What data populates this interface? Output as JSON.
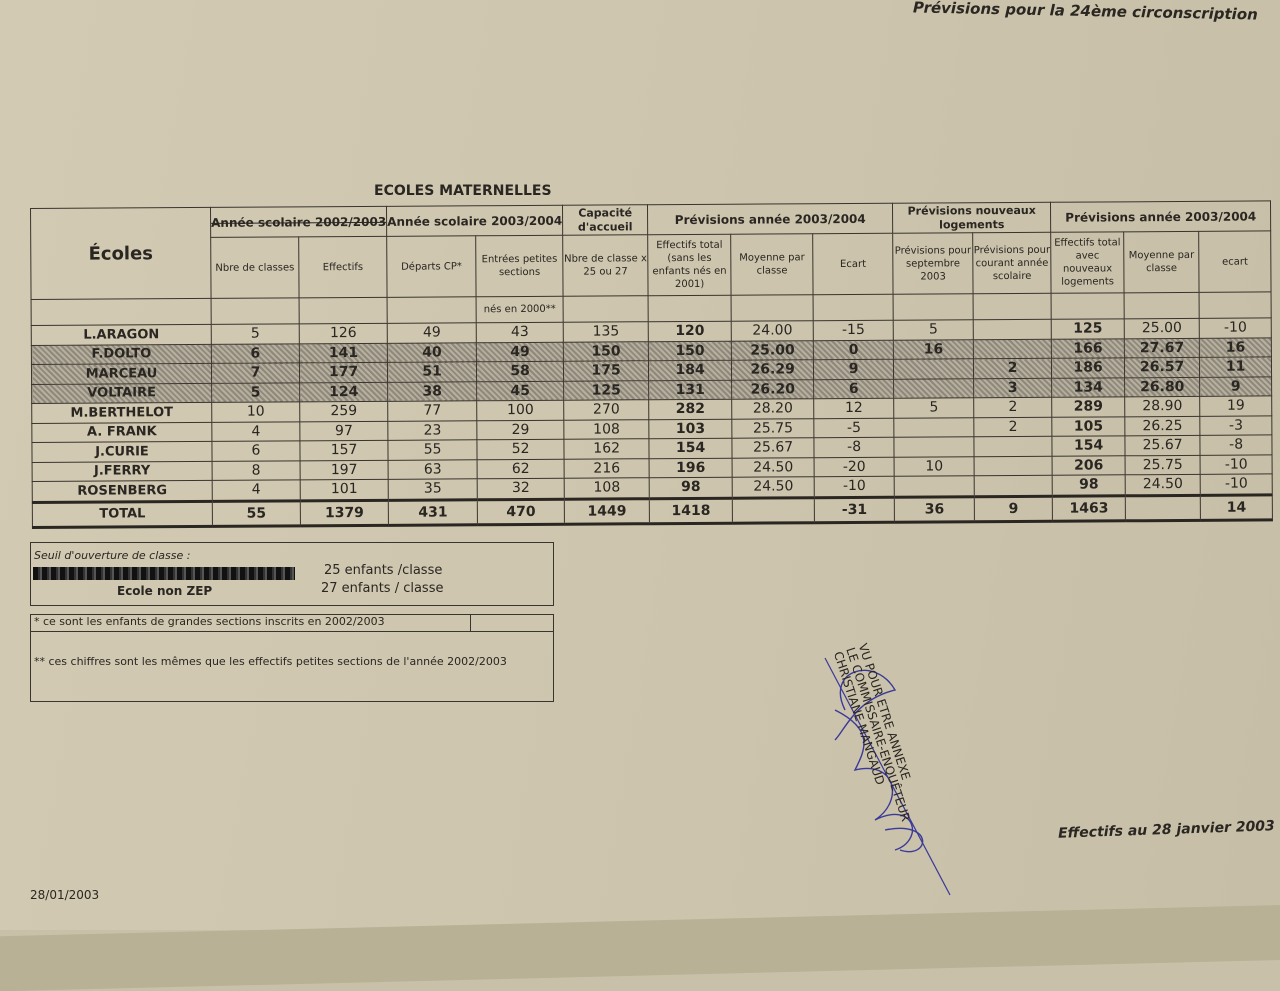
{
  "header_title": "Prévisions pour la 24ème circonscription",
  "section_title": "ECOLES MATERNELLES",
  "table": {
    "ecoles_label": "Écoles",
    "groups": {
      "y2002": "Année scolaire 2002/2003",
      "y2003": "Année scolaire 2003/2004",
      "capacite": "Capacité d'accueil",
      "prev": "Prévisions  année 2003/2004",
      "logements": "Prévisions nouveaux logements",
      "prev2": "Prévisions  année 2003/2004"
    },
    "subheaders": [
      "Nbre de classes",
      "Effectifs",
      "Départs CP*",
      "Entrées petites sections",
      "Nbre de classe x 25 ou 27",
      "Effectifs total (sans les enfants nés en 2001)",
      "Moyenne par classe",
      "Ecart",
      "Prévisions pour septembre 2003",
      "Prévisions pour courant année scolaire",
      "Effectifs total avec nouveaux logements",
      "Moyenne par classe",
      "ecart"
    ],
    "nes_label": "nés en 2000**",
    "rows": [
      {
        "name": "L.ARAGON",
        "shaded": false,
        "cells": [
          "5",
          "126",
          "49",
          "43",
          "135",
          "120",
          "24.00",
          "-15",
          "5",
          "",
          "125",
          "25.00",
          "-10"
        ]
      },
      {
        "name": "F.DOLTO",
        "shaded": true,
        "cells": [
          "6",
          "141",
          "40",
          "49",
          "150",
          "150",
          "25.00",
          "0",
          "16",
          "",
          "166",
          "27.67",
          "16"
        ]
      },
      {
        "name": "MARCEAU",
        "shaded": true,
        "cells": [
          "7",
          "177",
          "51",
          "58",
          "175",
          "184",
          "26.29",
          "9",
          "",
          "2",
          "186",
          "26.57",
          "11"
        ]
      },
      {
        "name": "VOLTAIRE",
        "shaded": true,
        "cells": [
          "5",
          "124",
          "38",
          "45",
          "125",
          "131",
          "26.20",
          "6",
          "",
          "3",
          "134",
          "26.80",
          "9"
        ]
      },
      {
        "name": "M.BERTHELOT",
        "shaded": false,
        "cells": [
          "10",
          "259",
          "77",
          "100",
          "270",
          "282",
          "28.20",
          "12",
          "5",
          "2",
          "289",
          "28.90",
          "19"
        ]
      },
      {
        "name": "A. FRANK",
        "shaded": false,
        "cells": [
          "4",
          "97",
          "23",
          "29",
          "108",
          "103",
          "25.75",
          "-5",
          "",
          "2",
          "105",
          "26.25",
          "-3"
        ]
      },
      {
        "name": "J.CURIE",
        "shaded": false,
        "cells": [
          "6",
          "157",
          "55",
          "52",
          "162",
          "154",
          "25.67",
          "-8",
          "",
          "",
          "154",
          "25.67",
          "-8"
        ]
      },
      {
        "name": "J.FERRY",
        "shaded": false,
        "cells": [
          "8",
          "197",
          "63",
          "62",
          "216",
          "196",
          "24.50",
          "-20",
          "10",
          "",
          "206",
          "25.75",
          "-10"
        ]
      },
      {
        "name": "ROSENBERG",
        "shaded": false,
        "cells": [
          "4",
          "101",
          "35",
          "32",
          "108",
          "98",
          "24.50",
          "-10",
          "",
          "",
          "98",
          "24.50",
          "-10"
        ]
      }
    ],
    "total": {
      "name": "TOTAL",
      "cells": [
        "55",
        "1379",
        "431",
        "470",
        "1449",
        "1418",
        "",
        "-31",
        "36",
        "9",
        "1463",
        "",
        "14"
      ]
    }
  },
  "seuil": {
    "label": "Seuil d'ouverture de classe :",
    "zep_value": "25 enfants /classe",
    "non_zep_label": "Ecole non ZEP",
    "non_zep_value": "27 enfants / classe"
  },
  "notes": {
    "note1": "* ce sont les enfants de grandes sections inscrits en 2002/2003",
    "note2": "** ces chiffres sont les mêmes que les effectifs petites sections de l'année 2002/2003"
  },
  "stamp": {
    "line1": "VU POUR ETRE ANNEXE",
    "line2": "LE COMMISSAIRE-ENQUÊTEUR",
    "line3": "CHRISTIANE MANGAUD"
  },
  "footer_effectifs": "Effectifs au 28 janvier 2003",
  "footer_date": "28/01/2003",
  "colors": {
    "paper": "#cdc5ad",
    "ink": "#2a2622",
    "signature": "#3a3a9a"
  }
}
